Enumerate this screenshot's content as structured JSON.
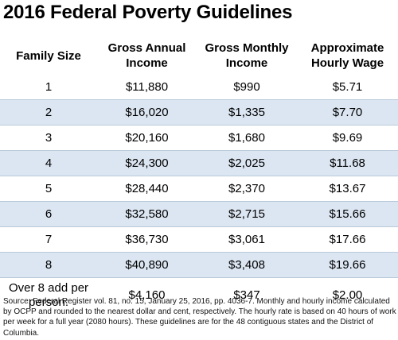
{
  "title": "2016 Federal Poverty Guidelines",
  "headers": {
    "family_size": "Family Size",
    "gross_annual": "Gross Annual Income",
    "gross_monthly": "Gross Monthly Income",
    "hourly": "Approximate Hourly Wage"
  },
  "rows": [
    {
      "size": "1",
      "annual": "$11,880",
      "monthly": "$990",
      "hourly": "$5.71"
    },
    {
      "size": "2",
      "annual": "$16,020",
      "monthly": "$1,335",
      "hourly": "$7.70"
    },
    {
      "size": "3",
      "annual": "$20,160",
      "monthly": "$1,680",
      "hourly": "$9.69"
    },
    {
      "size": "4",
      "annual": "$24,300",
      "monthly": "$2,025",
      "hourly": "$11.68"
    },
    {
      "size": "5",
      "annual": "$28,440",
      "monthly": "$2,370",
      "hourly": "$13.67"
    },
    {
      "size": "6",
      "annual": "$32,580",
      "monthly": "$2,715",
      "hourly": "$15.66"
    },
    {
      "size": "7",
      "annual": "$36,730",
      "monthly": "$3,061",
      "hourly": "$17.66"
    },
    {
      "size": "8",
      "annual": "$40,890",
      "monthly": "$3,408",
      "hourly": "$19.66"
    }
  ],
  "additional": {
    "label": "Over 8 add per person:",
    "annual": "$4,160",
    "monthly": "$347",
    "hourly": "$2.00"
  },
  "source": "Source: Federal Register vol. 81, no. 15, January 25, 2016, pp. 4036-7. Monthly and hourly income calculated by OCPP and rounded to the nearest dollar and cent, respectively. The hourly rate is based on 40 hours of work per week for a full year (2080 hours). These guidelines are for the 48 contiguous states and the District of Columbia."
}
